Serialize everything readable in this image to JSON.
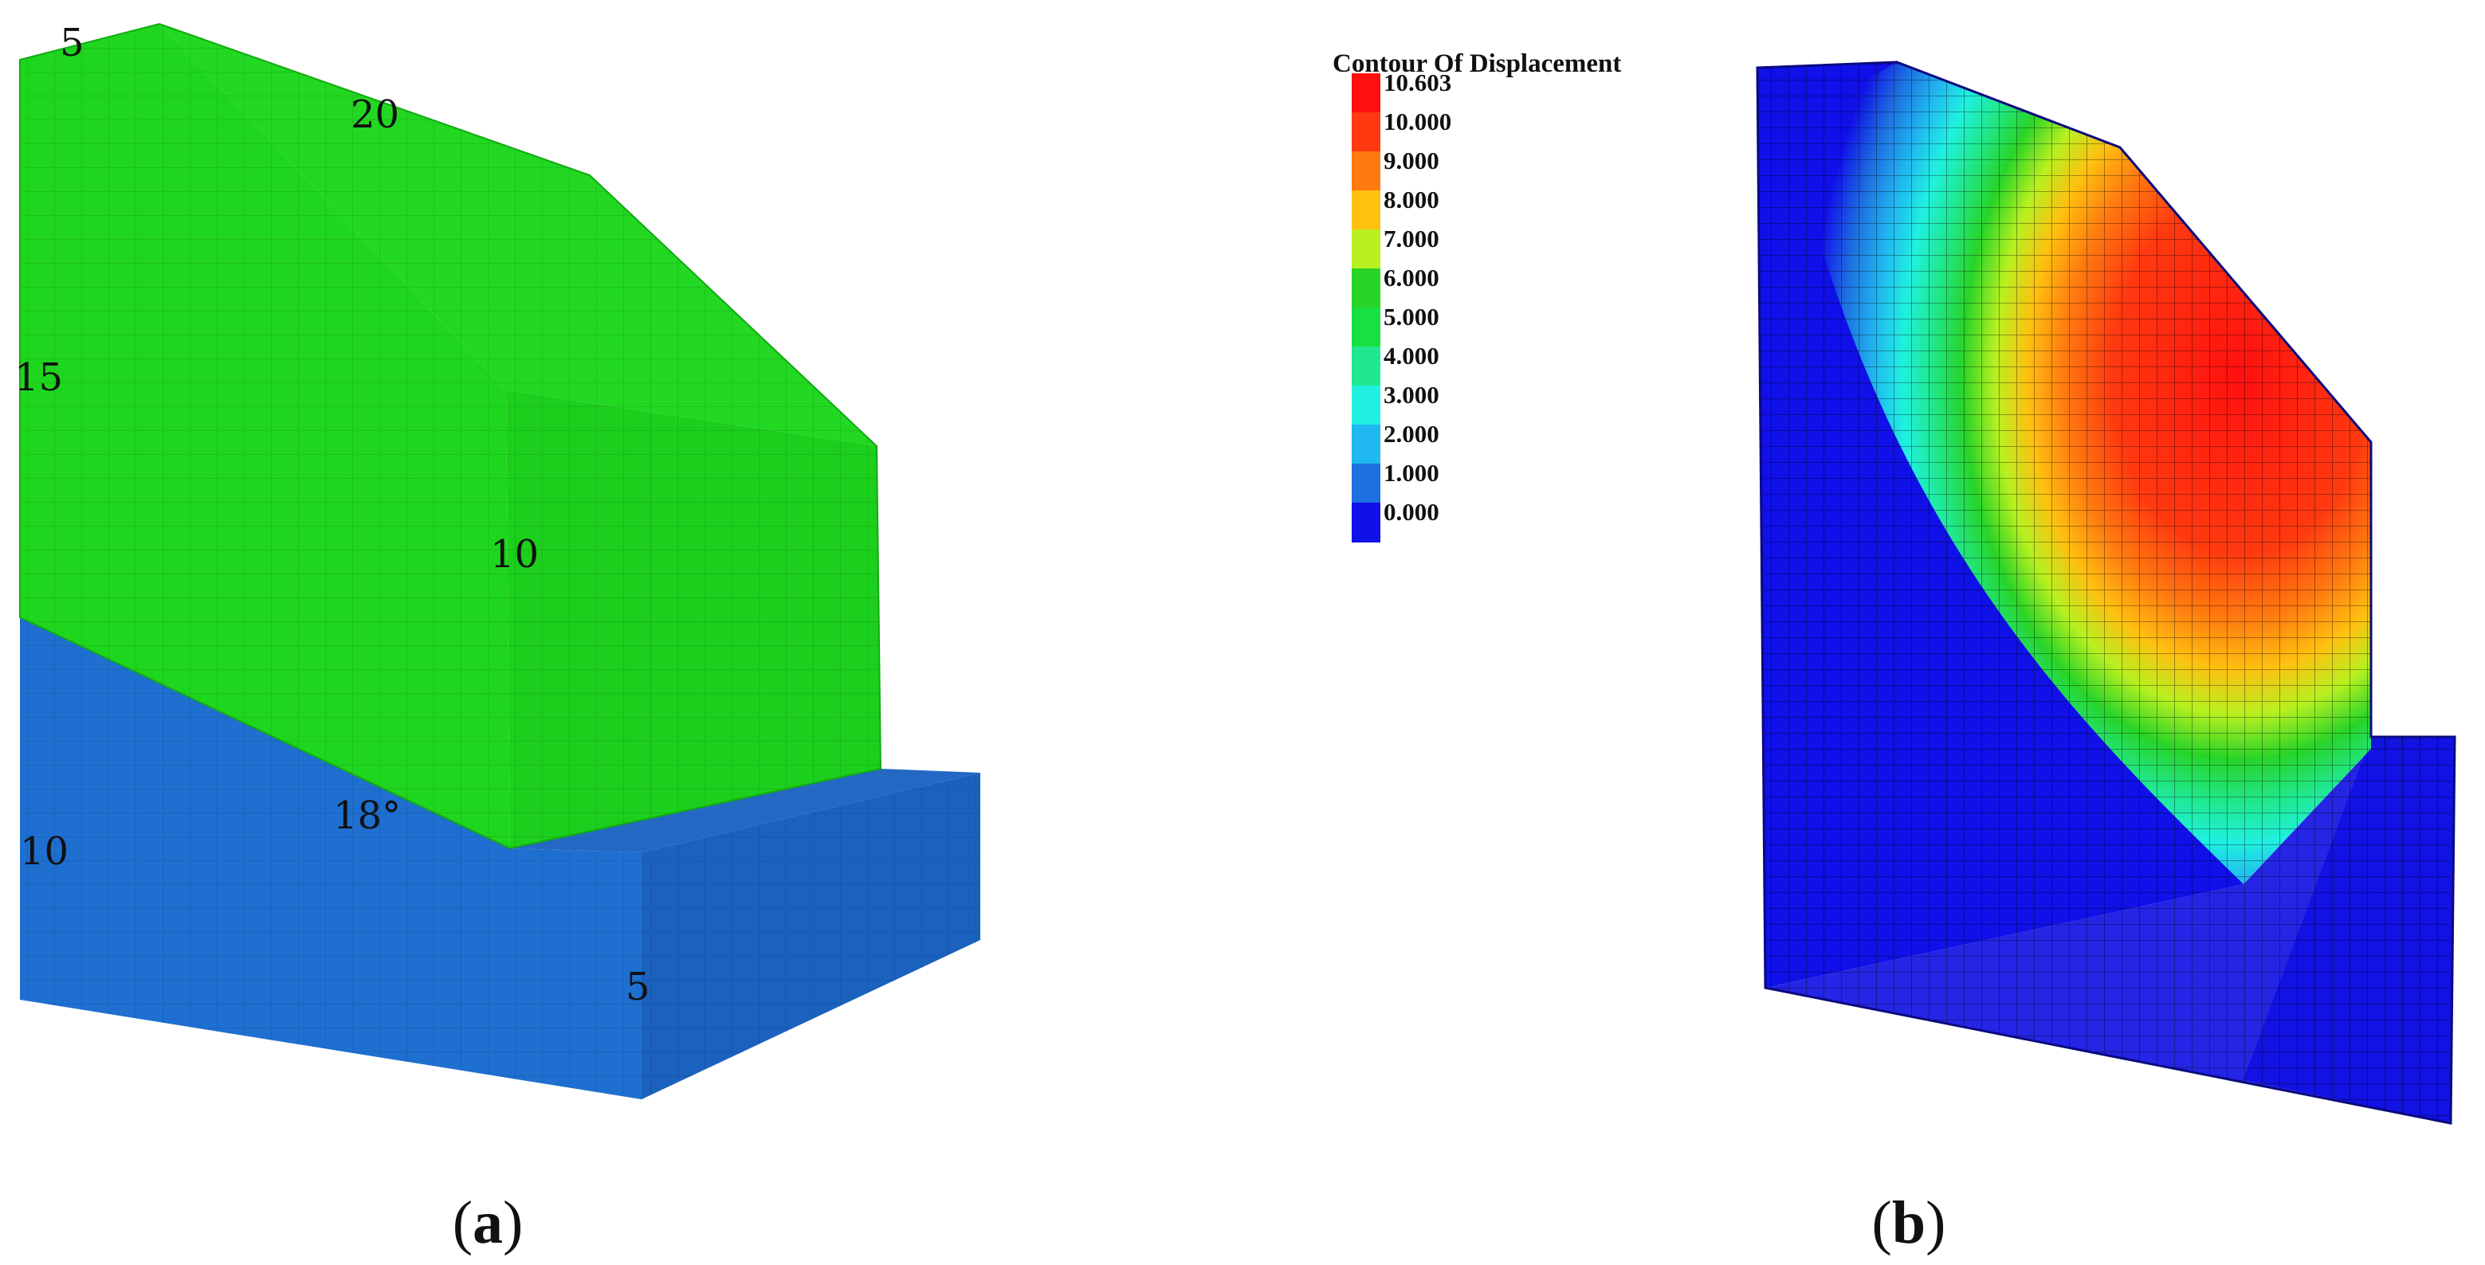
{
  "panel_a": {
    "label_open": "(",
    "label_letter": "a",
    "label_close": ")",
    "dimensions": {
      "top_left": "5",
      "top_slope": "20",
      "left_height": "15",
      "front_height": "10",
      "base_left_height": "10",
      "base_front": "5",
      "angle": "18°"
    },
    "colors": {
      "slope_body": "#1fd61f",
      "foundation": "#1e6fd0"
    }
  },
  "panel_b": {
    "label_open": "(",
    "label_letter": "b",
    "label_close": ")",
    "legend": {
      "title": "Contour Of Displacement",
      "levels": [
        {
          "value": "10.603",
          "color": "#ff1010"
        },
        {
          "value": "10.000",
          "color": "#ff3a10"
        },
        {
          "value": "9.000",
          "color": "#ff7a10"
        },
        {
          "value": "8.000",
          "color": "#ffc010"
        },
        {
          "value": "7.000",
          "color": "#b8f020"
        },
        {
          "value": "6.000",
          "color": "#28d428"
        },
        {
          "value": "5.000",
          "color": "#18e040"
        },
        {
          "value": "4.000",
          "color": "#20e890"
        },
        {
          "value": "3.000",
          "color": "#20f0e0"
        },
        {
          "value": "2.000",
          "color": "#20b8f0"
        },
        {
          "value": "1.000",
          "color": "#1e6fe0"
        },
        {
          "value": "0.000",
          "color": "#1010e8"
        }
      ]
    }
  }
}
